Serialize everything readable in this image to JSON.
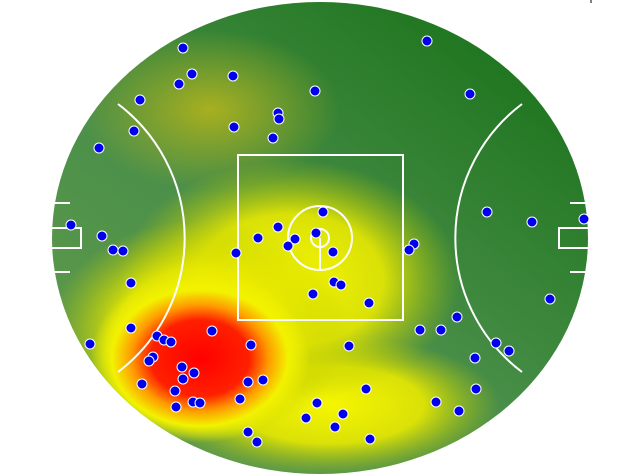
{
  "chart_data": {
    "type": "heatmap",
    "overlay": "scatter",
    "title": "",
    "xlabel": "",
    "ylabel": "",
    "xlim": [
      -268,
      268
    ],
    "ylim": [
      -236,
      236
    ],
    "grid": false,
    "legend": "none",
    "colors": {
      "low": "#0e6b0e",
      "mid": "#4a8f4a",
      "high1": "#f2f200",
      "high2": "#ff0000",
      "point_fill": "#0000ee",
      "point_stroke": "#ffffff",
      "markings": "#ffffff"
    },
    "density_peaks": [
      {
        "x": -120,
        "y": -122,
        "level": 1.0
      },
      {
        "x": -40,
        "y": -40,
        "level": 0.6
      },
      {
        "x": 20,
        "y": -150,
        "level": 0.55
      },
      {
        "x": -100,
        "y": 150,
        "level": 0.35
      }
    ],
    "points": [
      [
        -137,
        190
      ],
      [
        107,
        197
      ],
      [
        -128,
        164
      ],
      [
        -141,
        154
      ],
      [
        -87,
        162
      ],
      [
        -5,
        147
      ],
      [
        150,
        144
      ],
      [
        -180,
        138
      ],
      [
        -42,
        125
      ],
      [
        -41,
        119
      ],
      [
        -86,
        111
      ],
      [
        -186,
        107
      ],
      [
        -47,
        100
      ],
      [
        -221,
        90
      ],
      [
        167,
        26
      ],
      [
        212,
        16
      ],
      [
        264,
        19
      ],
      [
        -249,
        13
      ],
      [
        3,
        26
      ],
      [
        -218,
        2
      ],
      [
        -42,
        11
      ],
      [
        -62,
        0
      ],
      [
        -25,
        -1
      ],
      [
        -4,
        5
      ],
      [
        -32,
        -8
      ],
      [
        -207,
        -12
      ],
      [
        -197,
        -13
      ],
      [
        -84,
        -15
      ],
      [
        13,
        -14
      ],
      [
        94,
        -6
      ],
      [
        89,
        -12
      ],
      [
        14,
        -44
      ],
      [
        21,
        -47
      ],
      [
        -7,
        -56
      ],
      [
        -189,
        -45
      ],
      [
        49,
        -65
      ],
      [
        230,
        -61
      ],
      [
        137,
        -79
      ],
      [
        -189,
        -90
      ],
      [
        -108,
        -93
      ],
      [
        100,
        -92
      ],
      [
        121,
        -92
      ],
      [
        -163,
        -98
      ],
      [
        -156,
        -102
      ],
      [
        -149,
        -104
      ],
      [
        -230,
        -106
      ],
      [
        -69,
        -107
      ],
      [
        29,
        -108
      ],
      [
        176,
        -105
      ],
      [
        189,
        -113
      ],
      [
        -167,
        -119
      ],
      [
        -171,
        -123
      ],
      [
        155,
        -120
      ],
      [
        -138,
        -129
      ],
      [
        -126,
        -135
      ],
      [
        -137,
        -141
      ],
      [
        -57,
        -142
      ],
      [
        -72,
        -144
      ],
      [
        -178,
        -146
      ],
      [
        46,
        -151
      ],
      [
        156,
        -151
      ],
      [
        -145,
        -153
      ],
      [
        -80,
        -161
      ],
      [
        -127,
        -164
      ],
      [
        -120,
        -165
      ],
      [
        116,
        -164
      ],
      [
        -144,
        -169
      ],
      [
        -3,
        -165
      ],
      [
        139,
        -173
      ],
      [
        23,
        -176
      ],
      [
        -14,
        -180
      ],
      [
        15,
        -189
      ],
      [
        -72,
        -194
      ],
      [
        50,
        -201
      ],
      [
        -63,
        -204
      ]
    ]
  }
}
